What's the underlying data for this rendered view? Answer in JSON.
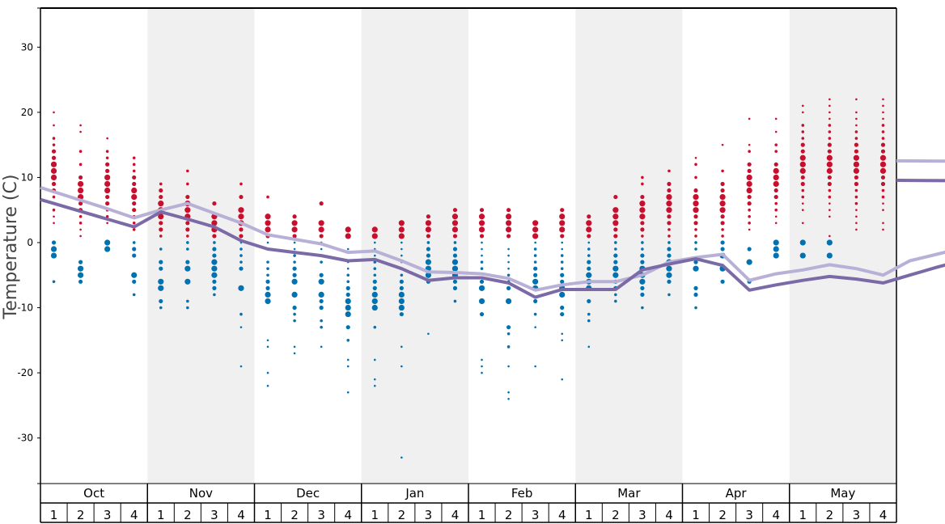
{
  "chart_data": {
    "type": "scatter",
    "ylabel": "Temperature (C)",
    "ylim": [
      -37,
      36
    ],
    "yticks": [
      -30,
      -20,
      -10,
      0,
      10,
      20,
      30
    ],
    "months": [
      "Oct",
      "Nov",
      "Dec",
      "Jan",
      "Feb",
      "Mar",
      "Apr",
      "May"
    ],
    "weeks_per_month": [
      "1",
      "2",
      "3",
      "4"
    ],
    "shaded_months": [
      "Nov",
      "Jan",
      "Mar",
      "May"
    ],
    "colors": {
      "high_points": "#c8102e",
      "low_points": "#0072b2",
      "high_avg": "#b8b0d6",
      "low_avg": "#7b6aa6",
      "shade": "#f0f0f0"
    },
    "series": [
      {
        "name": "",
        "role": "avg_high_line",
        "values": [
          7.8,
          6.5,
          5.2,
          3.8,
          5.0,
          6.0,
          4.5,
          3.0,
          1.2,
          0.5,
          -0.2,
          -1.5,
          -1.3,
          -2.8,
          -4.5,
          -4.6,
          -4.8,
          -5.5,
          -7.3,
          -6.5,
          -6.0,
          -6.0,
          -5.0,
          -3.0,
          -2.3,
          -1.8,
          -5.8,
          -4.8,
          -4.2,
          -3.4,
          -4.0,
          -5.0,
          -2.8,
          -1.8,
          -0.8,
          0.0,
          0.8,
          1.8,
          2.2,
          2.4,
          5.0,
          5.5,
          6.3,
          8.5,
          10.5,
          11.7,
          11.5,
          12.2
        ]
      },
      {
        "name": "",
        "role": "avg_low_line",
        "values": [
          6.0,
          4.8,
          3.6,
          2.4,
          4.7,
          3.6,
          2.4,
          0.3,
          -1.0,
          -1.5,
          -2.0,
          -2.8,
          -2.6,
          -4.0,
          -5.8,
          -5.4,
          -5.4,
          -6.2,
          -8.4,
          -7.2,
          -7.2,
          -7.2,
          -4.2,
          -3.3,
          -2.5,
          -3.5,
          -7.3,
          -6.5,
          -5.8,
          -5.2,
          -5.6,
          -6.2,
          -5.0,
          -3.8,
          -2.7,
          -1.9,
          -1.3,
          -0.9,
          0.0,
          0.0,
          3.0,
          3.4,
          6.2,
          7.4,
          8.5,
          8.4,
          8.5,
          9.2
        ]
      }
    ],
    "scatter_highs": [
      {
        "week": 1,
        "temps": [
          20,
          18,
          16,
          15,
          14,
          13,
          12,
          11,
          10,
          9,
          8,
          7,
          6,
          5,
          4,
          3
        ]
      },
      {
        "week": 2,
        "temps": [
          18,
          17,
          14,
          12,
          10,
          9,
          8,
          7,
          6,
          5,
          4,
          3,
          2,
          1
        ]
      },
      {
        "week": 3,
        "temps": [
          16,
          14,
          13,
          12,
          11,
          10,
          9,
          8,
          7,
          6,
          5,
          4,
          3
        ]
      },
      {
        "week": 4,
        "temps": [
          13,
          12,
          11,
          10,
          9,
          8,
          7,
          6,
          5,
          4,
          3,
          2
        ]
      },
      {
        "week": 5,
        "temps": [
          9,
          8,
          7,
          6,
          5,
          4,
          3,
          2,
          1
        ]
      },
      {
        "week": 6,
        "temps": [
          11,
          9,
          7,
          6,
          5,
          4,
          3,
          2,
          1
        ]
      },
      {
        "week": 7,
        "temps": [
          6,
          4,
          3,
          2,
          1
        ]
      },
      {
        "week": 8,
        "temps": [
          9,
          7,
          5,
          4,
          3,
          2,
          1
        ]
      },
      {
        "week": 9,
        "temps": [
          7,
          4,
          3,
          2,
          1
        ]
      },
      {
        "week": 10,
        "temps": [
          4,
          3,
          2,
          1
        ]
      },
      {
        "week": 11,
        "temps": [
          6,
          3,
          2,
          1
        ]
      },
      {
        "week": 12,
        "temps": [
          2,
          1
        ]
      },
      {
        "week": 13,
        "temps": [
          2,
          1
        ]
      },
      {
        "week": 14,
        "temps": [
          3,
          2,
          1
        ]
      },
      {
        "week": 15,
        "temps": [
          4,
          3,
          2,
          1
        ]
      },
      {
        "week": 16,
        "temps": [
          5,
          4,
          3,
          2,
          1
        ]
      },
      {
        "week": 17,
        "temps": [
          5,
          4,
          3,
          2,
          1
        ]
      },
      {
        "week": 18,
        "temps": [
          5,
          4,
          3,
          2,
          1
        ]
      },
      {
        "week": 19,
        "temps": [
          3,
          2,
          1
        ]
      },
      {
        "week": 20,
        "temps": [
          5,
          4,
          3,
          2,
          1
        ]
      },
      {
        "week": 21,
        "temps": [
          4,
          3,
          2,
          1
        ]
      },
      {
        "week": 22,
        "temps": [
          7,
          5,
          4,
          3,
          2,
          1
        ]
      },
      {
        "week": 23,
        "temps": [
          10,
          9,
          7,
          6,
          5,
          4,
          3,
          2,
          1
        ]
      },
      {
        "week": 24,
        "temps": [
          11,
          9,
          8,
          7,
          6,
          5,
          4,
          3,
          2,
          1
        ]
      },
      {
        "week": 25,
        "temps": [
          13,
          12,
          10,
          8,
          7,
          6,
          5,
          4,
          3,
          2,
          1
        ]
      },
      {
        "week": 26,
        "temps": [
          15,
          11,
          9,
          8,
          7,
          6,
          5,
          4,
          3,
          2,
          1
        ]
      },
      {
        "week": 27,
        "temps": [
          19,
          15,
          14,
          12,
          11,
          10,
          9,
          8,
          7,
          6,
          5,
          4,
          3,
          2
        ]
      },
      {
        "week": 28,
        "temps": [
          19,
          17,
          15,
          14,
          12,
          11,
          10,
          9,
          8,
          7,
          6,
          5,
          4,
          3
        ]
      },
      {
        "week": 29,
        "temps": [
          21,
          20,
          18,
          17,
          16,
          15,
          14,
          13,
          12,
          11,
          10,
          9,
          8,
          7,
          6,
          5,
          3
        ]
      },
      {
        "week": 30,
        "temps": [
          22,
          21,
          20,
          19,
          18,
          17,
          16,
          15,
          14,
          13,
          12,
          11,
          10,
          9,
          8,
          7,
          6,
          5,
          4,
          1
        ]
      },
      {
        "week": 31,
        "temps": [
          22,
          20,
          19,
          18,
          17,
          16,
          15,
          14,
          13,
          12,
          11,
          10,
          9,
          8,
          7,
          6,
          5,
          4,
          3,
          2
        ]
      },
      {
        "week": 32,
        "temps": [
          22,
          21,
          20,
          19,
          18,
          17,
          16,
          15,
          14,
          13,
          12,
          11,
          10,
          9,
          8,
          7,
          6,
          5,
          3,
          2
        ]
      }
    ],
    "scatter_lows": [
      {
        "week": 1,
        "temps": [
          0,
          -1,
          -2,
          -6
        ]
      },
      {
        "week": 2,
        "temps": [
          -3,
          -4,
          -5,
          -6
        ]
      },
      {
        "week": 3,
        "temps": [
          0,
          -1
        ]
      },
      {
        "week": 4,
        "temps": [
          0,
          -1,
          -2,
          -5,
          -6,
          -8
        ]
      },
      {
        "week": 5,
        "temps": [
          -1,
          -3,
          -4,
          -6,
          -7,
          -9,
          -10
        ]
      },
      {
        "week": 6,
        "temps": [
          0,
          -1,
          -3,
          -4,
          -6,
          -9,
          -10
        ]
      },
      {
        "week": 7,
        "temps": [
          0,
          -1,
          -2,
          -3,
          -4,
          -5,
          -6,
          -7,
          -8
        ]
      },
      {
        "week": 8,
        "temps": [
          0,
          -1,
          -2,
          -3,
          -4,
          -7,
          -11,
          -13,
          -19
        ]
      },
      {
        "week": 9,
        "temps": [
          0,
          -1,
          -3,
          -4,
          -5,
          -6,
          -7,
          -8,
          -9,
          -15,
          -16,
          -20,
          -22
        ]
      },
      {
        "week": 10,
        "temps": [
          0,
          -1,
          -2,
          -3,
          -4,
          -5,
          -6,
          -8,
          -10,
          -11,
          -12,
          -16,
          -17
        ]
      },
      {
        "week": 11,
        "temps": [
          0,
          -1,
          -2,
          -3,
          -5,
          -6,
          -8,
          -9,
          -10,
          -12,
          -13,
          -16
        ]
      },
      {
        "week": 12,
        "temps": [
          -1,
          -3,
          -4,
          -5,
          -6,
          -7,
          -8,
          -9,
          -10,
          -11,
          -13,
          -15,
          -18,
          -19,
          -23
        ]
      },
      {
        "week": 13,
        "temps": [
          0,
          -1,
          -2,
          -3,
          -4,
          -5,
          -6,
          -7,
          -8,
          -9,
          -10,
          -13,
          -18,
          -21,
          -22
        ]
      },
      {
        "week": 14,
        "temps": [
          0,
          -1,
          -2,
          -3,
          -5,
          -6,
          -7,
          -8,
          -9,
          -10,
          -11,
          -16,
          -19,
          -33
        ]
      },
      {
        "week": 15,
        "temps": [
          0,
          -1,
          -2,
          -3,
          -4,
          -5,
          -6,
          -14
        ]
      },
      {
        "week": 16,
        "temps": [
          0,
          -1,
          -2,
          -3,
          -4,
          -5,
          -6,
          -7,
          -9
        ]
      },
      {
        "week": 17,
        "temps": [
          0,
          -1,
          -2,
          -3,
          -4,
          -6,
          -7,
          -9,
          -11,
          -18,
          -19,
          -20
        ]
      },
      {
        "week": 18,
        "temps": [
          -1,
          -2,
          -3,
          -4,
          -5,
          -6,
          -7,
          -9,
          -13,
          -14,
          -16,
          -19,
          -23,
          -24
        ]
      },
      {
        "week": 19,
        "temps": [
          0,
          -1,
          -2,
          -3,
          -4,
          -5,
          -6,
          -7,
          -9,
          -11,
          -13,
          -19
        ]
      },
      {
        "week": 20,
        "temps": [
          0,
          -1,
          -2,
          -3,
          -4,
          -5,
          -6,
          -7,
          -8,
          -10,
          -11,
          -14,
          -15,
          -21
        ]
      },
      {
        "week": 21,
        "temps": [
          0,
          -1,
          -2,
          -3,
          -4,
          -5,
          -6,
          -7,
          -9,
          -11,
          -12,
          -16
        ]
      },
      {
        "week": 22,
        "temps": [
          0,
          -1,
          -2,
          -3,
          -4,
          -5,
          -6,
          -7,
          -8,
          -9
        ]
      },
      {
        "week": 23,
        "temps": [
          0,
          -1,
          -2,
          -3,
          -4,
          -5,
          -6,
          -7,
          -8,
          -10
        ]
      },
      {
        "week": 24,
        "temps": [
          0,
          -1,
          -2,
          -3,
          -4,
          -5,
          -6,
          -8
        ]
      },
      {
        "week": 25,
        "temps": [
          0,
          -1,
          -3,
          -4,
          -7,
          -8,
          -10
        ]
      },
      {
        "week": 26,
        "temps": [
          0,
          -1,
          -2,
          -4,
          -6
        ]
      },
      {
        "week": 27,
        "temps": [
          -1,
          -3,
          -6
        ]
      },
      {
        "week": 28,
        "temps": [
          0,
          -1,
          -2
        ]
      },
      {
        "week": 29,
        "temps": [
          0,
          -2
        ]
      },
      {
        "week": 30,
        "temps": [
          0,
          -2
        ]
      },
      {
        "week": 31,
        "temps": []
      },
      {
        "week": 32,
        "temps": []
      }
    ]
  }
}
